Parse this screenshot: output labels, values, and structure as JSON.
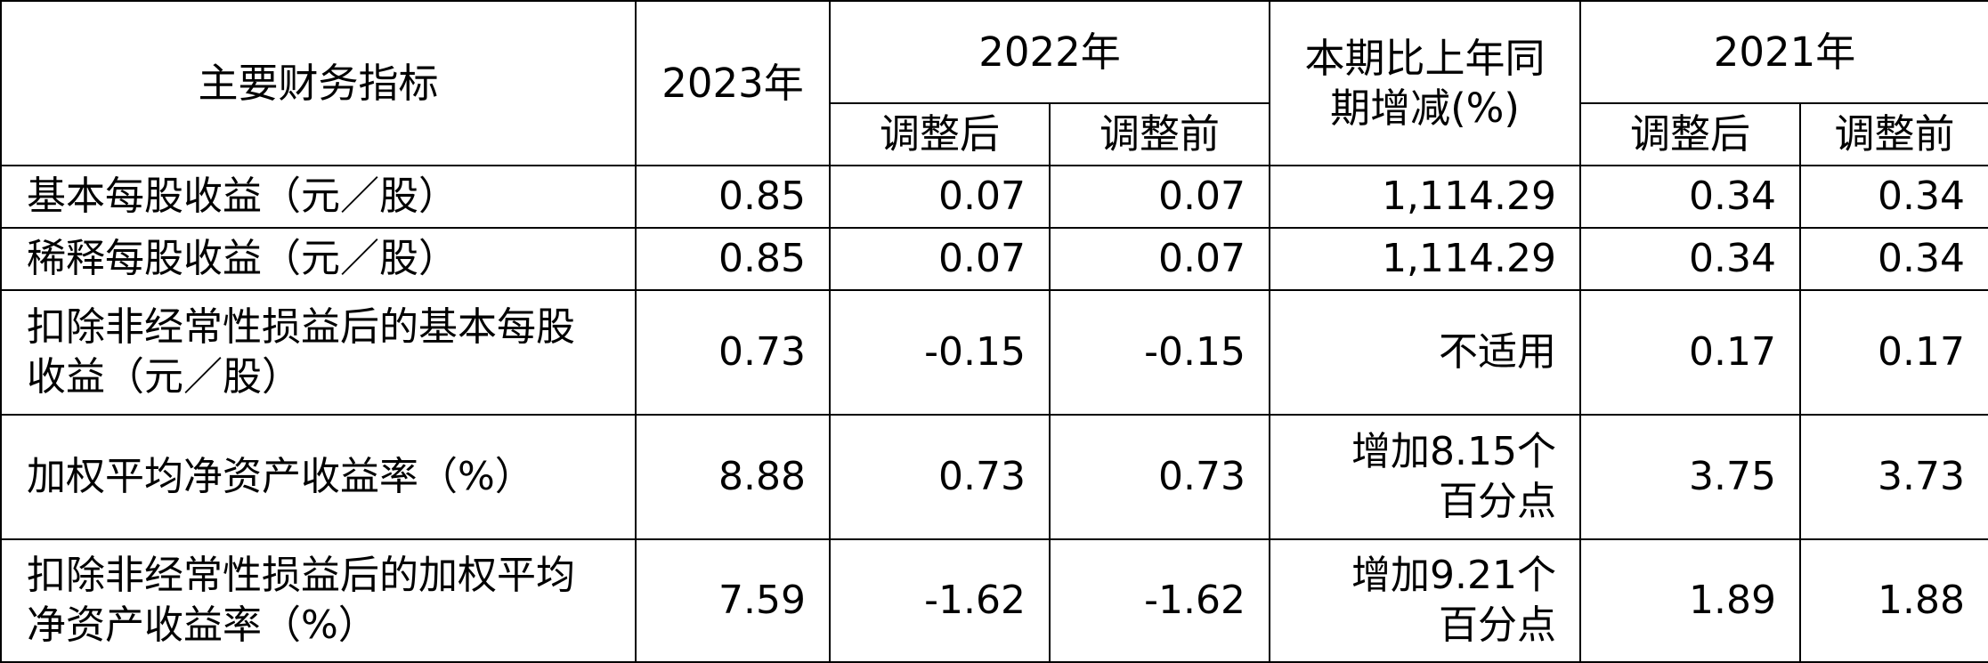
{
  "header": {
    "indicator": "主要财务指标",
    "year_2023": "2023年",
    "year_2022": "2022年",
    "change": "本期比上年同期增减(%)",
    "year_2021": "2021年",
    "adjusted_after": "调整后",
    "adjusted_before": "调整前"
  },
  "rows": [
    {
      "label": "基本每股收益（元／股）",
      "v2023": "0.85",
      "v2022_after": "0.07",
      "v2022_before": "0.07",
      "change_line1": "1,114.29",
      "change_line2": "",
      "v2021_after": "0.34",
      "v2021_before": "0.34"
    },
    {
      "label": "稀释每股收益（元／股）",
      "v2023": "0.85",
      "v2022_after": "0.07",
      "v2022_before": "0.07",
      "change_line1": "1,114.29",
      "change_line2": "",
      "v2021_after": "0.34",
      "v2021_before": "0.34"
    },
    {
      "label": "扣除非经常性损益后的基本每股收益（元／股）",
      "v2023": "0.73",
      "v2022_after": "-0.15",
      "v2022_before": "-0.15",
      "change_line1": "不适用",
      "change_line2": "",
      "v2021_after": "0.17",
      "v2021_before": "0.17"
    },
    {
      "label": "加权平均净资产收益率（%）",
      "v2023": "8.88",
      "v2022_after": "0.73",
      "v2022_before": "0.73",
      "change_line1": "增加8.15个",
      "change_line2": "百分点",
      "v2021_after": "3.75",
      "v2021_before": "3.73"
    },
    {
      "label": "扣除非经常性损益后的加权平均净资产收益率（%）",
      "v2023": "7.59",
      "v2022_after": "-1.62",
      "v2022_before": "-1.62",
      "change_line1": "增加9.21个",
      "change_line2": "百分点",
      "v2021_after": "1.89",
      "v2021_before": "1.88"
    }
  ]
}
